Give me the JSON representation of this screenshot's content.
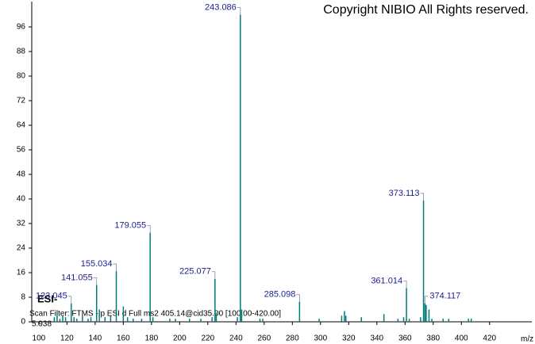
{
  "chart_data": {
    "type": "stick",
    "title": "Copyright NIBIO All Rights reserved.",
    "ionization": "ESI-",
    "scan_filter": "Scan Filter: FTMS - p ESI d Full ms2 405.14@cid35.00 [100.00-420.00]",
    "retention_time": "5.938",
    "x_label": "m/z",
    "color": "#007b7b",
    "label_color": "#1c1c8f",
    "labeled_peaks": {
      "x": [
        123.045,
        141.055,
        155.034,
        179.055,
        225.077,
        243.086,
        285.098,
        361.014,
        373.113,
        374.117
      ],
      "values": [
        6,
        12,
        16.5,
        29,
        14,
        100,
        6.5,
        11,
        39.5,
        6
      ]
    },
    "peaks": {
      "x": [
        111,
        113,
        115,
        117,
        119,
        125,
        127,
        131,
        135,
        137,
        143,
        147,
        151,
        160,
        163,
        167,
        173,
        181,
        193,
        197,
        207,
        215,
        223,
        226,
        241,
        244,
        257,
        259,
        299,
        315,
        317,
        318,
        329,
        345,
        355,
        359,
        363,
        371,
        375,
        377,
        379,
        387,
        391,
        405,
        407
      ],
      "values": [
        1.5,
        3,
        1,
        2,
        1.5,
        1.5,
        1,
        2,
        1,
        1.5,
        4,
        1.5,
        2,
        5,
        1.5,
        1,
        1,
        1.5,
        1,
        1,
        1,
        1,
        1.5,
        3,
        1.5,
        4,
        1,
        1,
        1,
        2,
        3.5,
        2,
        1.5,
        2.5,
        1,
        1.5,
        1,
        1.5,
        5.5,
        4,
        1,
        1,
        1,
        1,
        1
      ]
    },
    "xlim": [
      95,
      450
    ],
    "ylim": [
      0,
      100
    ],
    "xticks": [
      100,
      120,
      140,
      160,
      180,
      200,
      220,
      240,
      260,
      280,
      300,
      320,
      340,
      360,
      380,
      400,
      420
    ],
    "yticks": [
      0,
      8,
      16,
      24,
      32,
      40,
      48,
      56,
      64,
      72,
      80,
      88,
      96
    ]
  }
}
